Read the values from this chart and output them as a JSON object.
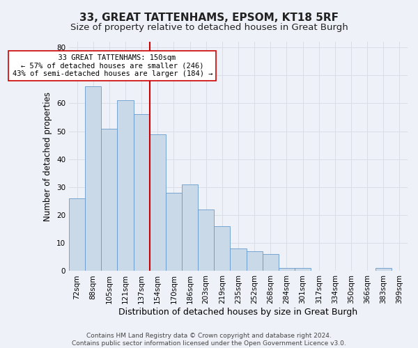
{
  "title": "33, GREAT TATTENHAMS, EPSOM, KT18 5RF",
  "subtitle": "Size of property relative to detached houses in Great Burgh",
  "xlabel": "Distribution of detached houses by size in Great Burgh",
  "ylabel": "Number of detached properties",
  "footer_line1": "Contains HM Land Registry data © Crown copyright and database right 2024.",
  "footer_line2": "Contains public sector information licensed under the Open Government Licence v3.0.",
  "categories": [
    "72sqm",
    "88sqm",
    "105sqm",
    "121sqm",
    "137sqm",
    "154sqm",
    "170sqm",
    "186sqm",
    "203sqm",
    "219sqm",
    "235sqm",
    "252sqm",
    "268sqm",
    "284sqm",
    "301sqm",
    "317sqm",
    "334sqm",
    "350sqm",
    "366sqm",
    "383sqm",
    "399sqm"
  ],
  "values": [
    26,
    66,
    51,
    61,
    56,
    49,
    28,
    31,
    22,
    16,
    8,
    7,
    6,
    1,
    1,
    0,
    0,
    0,
    0,
    1,
    0
  ],
  "bar_color": "#c9d9e8",
  "bar_edge_color": "#6699cc",
  "vline_index": 5,
  "vline_color": "#cc0000",
  "annotation_text": "  33 GREAT TATTENHAMS: 150sqm\n← 57% of detached houses are smaller (246)\n43% of semi-detached houses are larger (184) →",
  "annotation_box_color": "white",
  "annotation_box_edge_color": "#cc0000",
  "ylim": [
    0,
    82
  ],
  "yticks": [
    0,
    10,
    20,
    30,
    40,
    50,
    60,
    70,
    80
  ],
  "grid_color": "#d8dde8",
  "background_color": "#eef1f7",
  "title_fontsize": 11,
  "subtitle_fontsize": 9.5,
  "xlabel_fontsize": 9,
  "ylabel_fontsize": 8.5,
  "tick_fontsize": 7.5,
  "footer_fontsize": 6.5,
  "annotation_fontsize": 7.5
}
